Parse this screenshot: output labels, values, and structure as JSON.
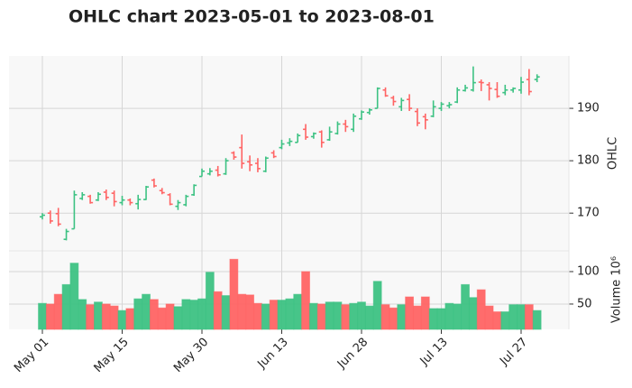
{
  "chart_data": {
    "type": "ohlc",
    "title": "OHLC chart 2023-05-01 to 2023-08-01",
    "ylabel": "OHLC",
    "volume_label": "Volume  10⁶",
    "up_color": "#3dc283",
    "down_color": "#ff6464",
    "grid": true,
    "categories": [
      "May 01",
      null,
      null,
      null,
      null,
      null,
      null,
      null,
      null,
      null,
      "May 15",
      null,
      null,
      null,
      null,
      null,
      null,
      null,
      null,
      null,
      "May 30",
      null,
      null,
      null,
      null,
      null,
      null,
      null,
      null,
      null,
      "Jun 13",
      null,
      null,
      null,
      null,
      null,
      null,
      null,
      null,
      null,
      "Jun 28",
      null,
      null,
      null,
      null,
      null,
      null,
      null,
      null,
      null,
      "Jul 13",
      null,
      null,
      null,
      null,
      null,
      null,
      null,
      null,
      null,
      "Jul 27",
      null,
      null
    ],
    "open": [
      169.3,
      170,
      169.9,
      165,
      167,
      172.8,
      173.2,
      172.5,
      174,
      173.8,
      172,
      172.5,
      171.8,
      172.6,
      176.3,
      174.3,
      173.5,
      171.3,
      171.6,
      173.5,
      177,
      177.5,
      178.2,
      177.5,
      181.5,
      182.5,
      179.8,
      179.5,
      178,
      181.5,
      182.5,
      183.4,
      183.5,
      186,
      184.6,
      185.5,
      184,
      185.2,
      187,
      186,
      188,
      189.2,
      190,
      193.5,
      192,
      190.3,
      191.7,
      189.4,
      188.4,
      188.5,
      190,
      190.5,
      191.2,
      193.4,
      193.5,
      195,
      194.5,
      193.6,
      193,
      193.5,
      193.5,
      195.5,
      195.5
    ],
    "high": [
      170,
      170.5,
      171,
      167,
      174.3,
      174,
      173.5,
      174,
      174.5,
      174.3,
      173.3,
      172.8,
      173.5,
      175.2,
      176.6,
      174.8,
      173.8,
      172.5,
      173.5,
      175.5,
      178.5,
      178.6,
      179,
      180.5,
      181.8,
      185,
      181,
      180.5,
      180.8,
      182,
      184,
      184.3,
      185.2,
      187,
      185.4,
      185.8,
      186.5,
      187.5,
      187.8,
      189,
      189.6,
      190,
      194,
      194,
      192.4,
      192,
      192.7,
      190,
      189,
      191.5,
      191.2,
      191.2,
      194,
      194.5,
      198,
      195.5,
      195,
      195,
      194.5,
      194,
      196,
      197.5,
      196.5
    ],
    "low": [
      168.8,
      168,
      167.5,
      164.8,
      167,
      172.5,
      171.8,
      172.3,
      172.5,
      171.3,
      171.5,
      171.5,
      170.7,
      172.5,
      174.9,
      173.6,
      171.5,
      170.6,
      171.3,
      173.3,
      177,
      177.2,
      177,
      177.3,
      180.2,
      178.5,
      178,
      177.8,
      177.8,
      180.5,
      182.2,
      182.8,
      183.5,
      184,
      184.2,
      182.5,
      183.8,
      185,
      185.5,
      185.5,
      187.8,
      188.8,
      190,
      192.2,
      190.5,
      189.5,
      189.5,
      186.6,
      186,
      188.3,
      189.5,
      190,
      191,
      193.2,
      193.2,
      193.3,
      191.5,
      192,
      192.5,
      193,
      192.8,
      192.5,
      195
    ],
    "close": [
      169.6,
      168.5,
      167.9,
      166.5,
      173.5,
      173.5,
      172,
      173.6,
      173,
      172.2,
      172.5,
      172,
      172.6,
      175,
      175.2,
      173.9,
      171.7,
      172,
      173.2,
      175.3,
      178,
      178,
      177.3,
      180,
      180.7,
      179.5,
      179.2,
      178.5,
      180.5,
      180.8,
      183.2,
      183.7,
      184.8,
      184.5,
      185.2,
      183.5,
      185.5,
      187,
      186.5,
      188.5,
      189.3,
      189.7,
      193.8,
      192.4,
      191.3,
      191.5,
      190,
      187.2,
      187.8,
      190.3,
      190.8,
      190.7,
      193.5,
      193.9,
      194.9,
      194.9,
      193.8,
      192.3,
      193.5,
      193.8,
      195,
      193.2,
      196
    ],
    "volume": [
      51,
      50,
      65,
      80,
      113,
      57,
      49,
      53,
      50,
      47,
      40,
      43,
      58,
      65,
      57,
      44,
      50,
      46,
      57,
      56,
      58,
      99,
      69,
      63,
      119,
      65,
      64,
      51,
      50,
      56,
      56,
      58,
      65,
      100,
      51,
      50,
      53,
      53,
      49,
      51,
      53,
      47,
      85,
      49,
      44,
      49,
      61,
      47,
      61,
      43,
      43,
      51,
      50,
      80,
      60,
      72,
      47,
      38,
      38,
      49,
      49,
      49,
      40
    ],
    "ylim": [
      162.8,
      200
    ],
    "yticks": [
      170,
      180,
      190
    ],
    "volume_ylim": [
      11,
      132
    ],
    "volume_yticks": [
      50,
      100
    ]
  }
}
